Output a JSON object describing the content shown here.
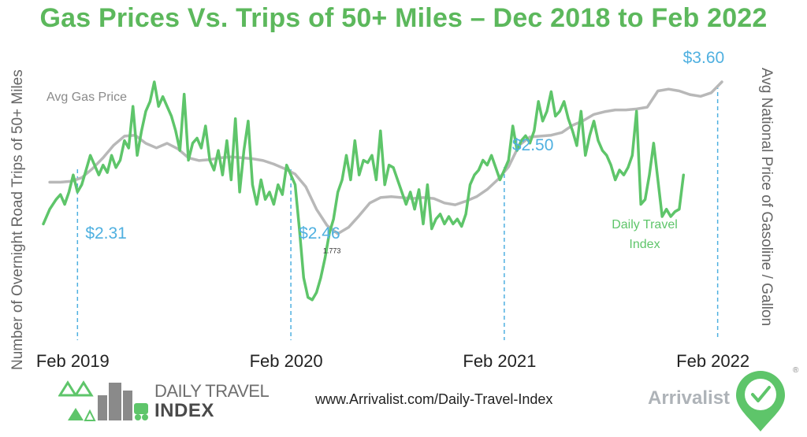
{
  "title": "Gas Prices Vs. Trips of 50+ Miles – Dec 2018 to Feb 2022",
  "footer": {
    "url": "www.Arrivalist.com/Daily-Travel-Index",
    "brand": "Arrivalist"
  },
  "logo": {
    "line1": "DAILY TRAVEL",
    "line2": "INDEX"
  },
  "colors": {
    "title": "#5cb85c",
    "travel": "#5ec56a",
    "gas": "#b8b8b8",
    "price_marker": "#4fb0e0"
  },
  "chart_data": {
    "type": "line",
    "title": "Gas Prices Vs. Trips of 50+ Miles – Dec 2018 to Feb 2022",
    "ylabel_left": "Number of Overnight Road Trips of 50+ Miles",
    "ylabel_right": "Avg National Price of Gasoline / Gallon",
    "x_ticks": [
      "Feb 2019",
      "Feb 2020",
      "Feb 2021",
      "Feb 2022"
    ],
    "x_range": [
      2018.92,
      2022.17
    ],
    "gas_range": [
      1.6,
      3.8
    ],
    "travel_range": [
      0,
      100
    ],
    "grid": false,
    "annotations": [
      {
        "label": "$2.31",
        "x": 2019.08
      },
      {
        "label": "$2.46",
        "x": 2020.08
      },
      {
        "label": "$2.50",
        "x": 2021.08
      },
      {
        "label": "$3.60",
        "x": 2022.08
      },
      {
        "label": "1.773",
        "x": 2020.26,
        "y": 1.773
      }
    ],
    "series": [
      {
        "name": "Avg Gas Price",
        "values": [
          [
            2018.95,
            2.35
          ],
          [
            2019.0,
            2.35
          ],
          [
            2019.05,
            2.36
          ],
          [
            2019.1,
            2.4
          ],
          [
            2019.15,
            2.5
          ],
          [
            2019.2,
            2.62
          ],
          [
            2019.25,
            2.76
          ],
          [
            2019.3,
            2.86
          ],
          [
            2019.35,
            2.87
          ],
          [
            2019.4,
            2.78
          ],
          [
            2019.45,
            2.73
          ],
          [
            2019.5,
            2.78
          ],
          [
            2019.55,
            2.72
          ],
          [
            2019.6,
            2.62
          ],
          [
            2019.65,
            2.59
          ],
          [
            2019.7,
            2.6
          ],
          [
            2019.75,
            2.62
          ],
          [
            2019.8,
            2.63
          ],
          [
            2019.85,
            2.62
          ],
          [
            2019.9,
            2.61
          ],
          [
            2019.95,
            2.59
          ],
          [
            2020.0,
            2.55
          ],
          [
            2020.05,
            2.5
          ],
          [
            2020.1,
            2.44
          ],
          [
            2020.15,
            2.3
          ],
          [
            2020.2,
            2.05
          ],
          [
            2020.25,
            1.87
          ],
          [
            2020.3,
            1.78
          ],
          [
            2020.35,
            1.85
          ],
          [
            2020.4,
            1.98
          ],
          [
            2020.45,
            2.12
          ],
          [
            2020.5,
            2.18
          ],
          [
            2020.55,
            2.19
          ],
          [
            2020.6,
            2.18
          ],
          [
            2020.65,
            2.17
          ],
          [
            2020.7,
            2.18
          ],
          [
            2020.75,
            2.17
          ],
          [
            2020.8,
            2.12
          ],
          [
            2020.85,
            2.1
          ],
          [
            2020.9,
            2.14
          ],
          [
            2020.95,
            2.19
          ],
          [
            2021.0,
            2.27
          ],
          [
            2021.05,
            2.38
          ],
          [
            2021.1,
            2.52
          ],
          [
            2021.15,
            2.76
          ],
          [
            2021.2,
            2.85
          ],
          [
            2021.25,
            2.86
          ],
          [
            2021.3,
            2.87
          ],
          [
            2021.35,
            2.9
          ],
          [
            2021.4,
            2.98
          ],
          [
            2021.45,
            3.03
          ],
          [
            2021.5,
            3.1
          ],
          [
            2021.55,
            3.13
          ],
          [
            2021.6,
            3.15
          ],
          [
            2021.65,
            3.15
          ],
          [
            2021.7,
            3.16
          ],
          [
            2021.75,
            3.18
          ],
          [
            2021.8,
            3.36
          ],
          [
            2021.85,
            3.38
          ],
          [
            2021.9,
            3.36
          ],
          [
            2021.95,
            3.32
          ],
          [
            2022.0,
            3.3
          ],
          [
            2022.05,
            3.34
          ],
          [
            2022.1,
            3.46
          ]
        ]
      },
      {
        "name": "Daily Travel Index",
        "values": [
          [
            2018.92,
            42
          ],
          [
            2018.95,
            48
          ],
          [
            2018.98,
            52
          ],
          [
            2019.0,
            54
          ],
          [
            2019.02,
            50
          ],
          [
            2019.04,
            55
          ],
          [
            2019.06,
            62
          ],
          [
            2019.08,
            55
          ],
          [
            2019.1,
            58
          ],
          [
            2019.12,
            64
          ],
          [
            2019.14,
            70
          ],
          [
            2019.16,
            66
          ],
          [
            2019.18,
            62
          ],
          [
            2019.2,
            66
          ],
          [
            2019.22,
            63
          ],
          [
            2019.24,
            70
          ],
          [
            2019.26,
            65
          ],
          [
            2019.28,
            68
          ],
          [
            2019.3,
            76
          ],
          [
            2019.32,
            73
          ],
          [
            2019.34,
            90
          ],
          [
            2019.36,
            70
          ],
          [
            2019.38,
            80
          ],
          [
            2019.4,
            88
          ],
          [
            2019.42,
            92
          ],
          [
            2019.44,
            100
          ],
          [
            2019.46,
            90
          ],
          [
            2019.48,
            94
          ],
          [
            2019.5,
            90
          ],
          [
            2019.52,
            86
          ],
          [
            2019.54,
            80
          ],
          [
            2019.56,
            72
          ],
          [
            2019.58,
            95
          ],
          [
            2019.6,
            68
          ],
          [
            2019.62,
            75
          ],
          [
            2019.64,
            77
          ],
          [
            2019.66,
            73
          ],
          [
            2019.68,
            82
          ],
          [
            2019.7,
            68
          ],
          [
            2019.72,
            64
          ],
          [
            2019.74,
            72
          ],
          [
            2019.76,
            62
          ],
          [
            2019.78,
            76
          ],
          [
            2019.8,
            60
          ],
          [
            2019.82,
            85
          ],
          [
            2019.84,
            55
          ],
          [
            2019.86,
            72
          ],
          [
            2019.88,
            84
          ],
          [
            2019.9,
            58
          ],
          [
            2019.92,
            50
          ],
          [
            2019.94,
            60
          ],
          [
            2019.96,
            52
          ],
          [
            2019.98,
            55
          ],
          [
            2020.0,
            50
          ],
          [
            2020.02,
            58
          ],
          [
            2020.04,
            54
          ],
          [
            2020.06,
            66
          ],
          [
            2020.08,
            62
          ],
          [
            2020.1,
            58
          ],
          [
            2020.12,
            40
          ],
          [
            2020.14,
            20
          ],
          [
            2020.16,
            12
          ],
          [
            2020.18,
            11
          ],
          [
            2020.2,
            14
          ],
          [
            2020.22,
            20
          ],
          [
            2020.24,
            28
          ],
          [
            2020.26,
            38
          ],
          [
            2020.28,
            44
          ],
          [
            2020.3,
            55
          ],
          [
            2020.32,
            60
          ],
          [
            2020.34,
            70
          ],
          [
            2020.36,
            60
          ],
          [
            2020.38,
            76
          ],
          [
            2020.4,
            62
          ],
          [
            2020.42,
            68
          ],
          [
            2020.44,
            67
          ],
          [
            2020.46,
            70
          ],
          [
            2020.48,
            60
          ],
          [
            2020.5,
            80
          ],
          [
            2020.52,
            58
          ],
          [
            2020.54,
            66
          ],
          [
            2020.56,
            65
          ],
          [
            2020.58,
            60
          ],
          [
            2020.6,
            55
          ],
          [
            2020.62,
            50
          ],
          [
            2020.64,
            55
          ],
          [
            2020.66,
            48
          ],
          [
            2020.68,
            56
          ],
          [
            2020.7,
            42
          ],
          [
            2020.72,
            58
          ],
          [
            2020.74,
            40
          ],
          [
            2020.76,
            44
          ],
          [
            2020.78,
            46
          ],
          [
            2020.8,
            42
          ],
          [
            2020.82,
            45
          ],
          [
            2020.84,
            42
          ],
          [
            2020.86,
            44
          ],
          [
            2020.88,
            41
          ],
          [
            2020.9,
            46
          ],
          [
            2020.92,
            58
          ],
          [
            2020.94,
            62
          ],
          [
            2020.96,
            64
          ],
          [
            2020.98,
            68
          ],
          [
            2021.0,
            66
          ],
          [
            2021.02,
            70
          ],
          [
            2021.04,
            65
          ],
          [
            2021.06,
            60
          ],
          [
            2021.08,
            64
          ],
          [
            2021.1,
            68
          ],
          [
            2021.12,
            82
          ],
          [
            2021.14,
            72
          ],
          [
            2021.16,
            76
          ],
          [
            2021.18,
            78
          ],
          [
            2021.2,
            75
          ],
          [
            2021.22,
            80
          ],
          [
            2021.24,
            92
          ],
          [
            2021.26,
            84
          ],
          [
            2021.28,
            88
          ],
          [
            2021.3,
            96
          ],
          [
            2021.32,
            86
          ],
          [
            2021.34,
            88
          ],
          [
            2021.36,
            92
          ],
          [
            2021.38,
            85
          ],
          [
            2021.4,
            80
          ],
          [
            2021.42,
            74
          ],
          [
            2021.44,
            88
          ],
          [
            2021.46,
            70
          ],
          [
            2021.48,
            78
          ],
          [
            2021.5,
            84
          ],
          [
            2021.52,
            76
          ],
          [
            2021.54,
            72
          ],
          [
            2021.56,
            70
          ],
          [
            2021.58,
            66
          ],
          [
            2021.6,
            60
          ],
          [
            2021.62,
            64
          ],
          [
            2021.64,
            62
          ],
          [
            2021.66,
            65
          ],
          [
            2021.68,
            70
          ],
          [
            2021.7,
            88
          ],
          [
            2021.72,
            50
          ],
          [
            2021.74,
            52
          ],
          [
            2021.76,
            62
          ],
          [
            2021.78,
            75
          ],
          [
            2021.8,
            60
          ],
          [
            2021.82,
            45
          ],
          [
            2021.84,
            48
          ],
          [
            2021.86,
            45
          ],
          [
            2021.88,
            47
          ],
          [
            2021.9,
            48
          ],
          [
            2021.92,
            62
          ]
        ]
      }
    ],
    "series_labels": {
      "gas": "Avg Gas Price",
      "travel_line1": "Daily Travel",
      "travel_line2": "Index"
    }
  }
}
